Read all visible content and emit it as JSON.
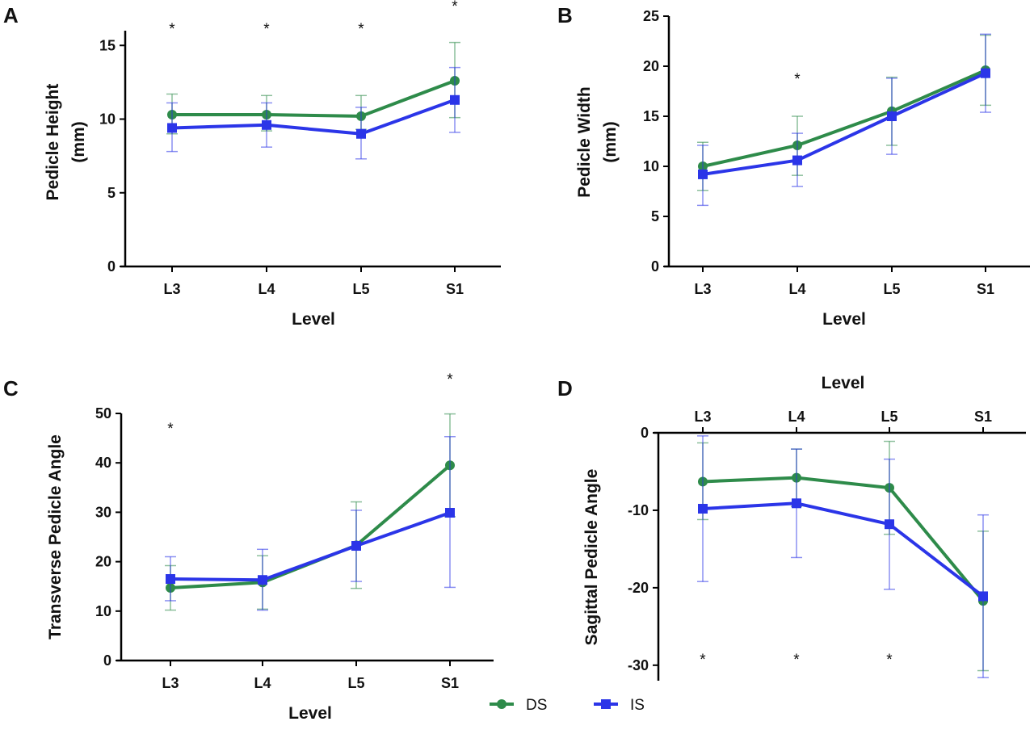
{
  "colors": {
    "DS": "#2e8b4a",
    "IS": "#2b35e8"
  },
  "legend": [
    {
      "name": "DS",
      "marker": "circle"
    },
    {
      "name": "IS",
      "marker": "square"
    }
  ],
  "chart_data": [
    {
      "panel": "A",
      "type": "line",
      "categories": [
        "L3",
        "L4",
        "L5",
        "S1"
      ],
      "xlabel": "Level",
      "ylabel_lines": [
        "Pedicle Height",
        "(mm)"
      ],
      "ylim": [
        0,
        16
      ],
      "yticks": [
        0,
        5,
        10,
        15
      ],
      "series": [
        {
          "name": "DS",
          "values": [
            10.3,
            10.3,
            10.2,
            12.6
          ],
          "err_low": [
            9.0,
            9.2,
            9.3,
            10.1
          ],
          "err_high": [
            11.7,
            11.6,
            11.6,
            15.2
          ]
        },
        {
          "name": "IS",
          "values": [
            9.4,
            9.6,
            9.0,
            11.3
          ],
          "err_low": [
            7.8,
            8.1,
            7.3,
            9.1
          ],
          "err_high": [
            11.1,
            11.1,
            10.8,
            13.5
          ]
        }
      ],
      "significance": [
        "*",
        "*",
        "*",
        "*"
      ]
    },
    {
      "panel": "B",
      "type": "line",
      "categories": [
        "L3",
        "L4",
        "L5",
        "S1"
      ],
      "xlabel": "Level",
      "ylabel_lines": [
        "Pedicle Width",
        "(mm)"
      ],
      "ylim": [
        0,
        25
      ],
      "yticks": [
        0,
        5,
        10,
        15,
        20,
        25
      ],
      "series": [
        {
          "name": "DS",
          "values": [
            10.0,
            12.1,
            15.5,
            19.6
          ],
          "err_low": [
            7.6,
            9.1,
            12.1,
            16.1
          ],
          "err_high": [
            12.4,
            15.0,
            18.9,
            23.1
          ]
        },
        {
          "name": "IS",
          "values": [
            9.2,
            10.6,
            15.0,
            19.3
          ],
          "err_low": [
            6.1,
            8.0,
            11.2,
            15.4
          ],
          "err_high": [
            12.1,
            13.3,
            18.8,
            23.2
          ]
        }
      ],
      "significance": [
        "",
        "*",
        "",
        ""
      ]
    },
    {
      "panel": "C",
      "type": "line",
      "categories": [
        "L3",
        "L4",
        "L5",
        "S1"
      ],
      "xlabel": "Level",
      "ylabel_lines": [
        "Transverse Pedicle Angle"
      ],
      "ylim": [
        0,
        50
      ],
      "yticks": [
        0,
        10,
        20,
        30,
        40,
        50
      ],
      "series": [
        {
          "name": "DS",
          "values": [
            14.7,
            15.8,
            23.3,
            39.5
          ],
          "err_low": [
            10.2,
            10.4,
            14.6,
            29.1
          ],
          "err_high": [
            19.2,
            21.2,
            32.1,
            49.9
          ]
        },
        {
          "name": "IS",
          "values": [
            16.5,
            16.3,
            23.2,
            29.9
          ],
          "err_low": [
            12.1,
            10.2,
            16.0,
            14.8
          ],
          "err_high": [
            21.0,
            22.5,
            30.4,
            45.3
          ]
        }
      ],
      "significance": [
        "*",
        "",
        "",
        "*"
      ]
    },
    {
      "panel": "D",
      "type": "line",
      "categories": [
        "L3",
        "L4",
        "L5",
        "S1"
      ],
      "xlabel": "Level",
      "xaxis_position": "top",
      "ylabel_lines": [
        "Sagittal Pedicle Angle"
      ],
      "ylim": [
        -32,
        0
      ],
      "yticks": [
        0,
        -10,
        -20,
        -30
      ],
      "series": [
        {
          "name": "DS",
          "values": [
            -6.3,
            -5.8,
            -7.1,
            -21.7
          ],
          "err_low": [
            -11.2,
            -9.5,
            -13.1,
            -30.7
          ],
          "err_high": [
            -1.3,
            -2.1,
            -1.1,
            -12.7
          ]
        },
        {
          "name": "IS",
          "values": [
            -9.8,
            -9.1,
            -11.8,
            -21.1
          ],
          "err_low": [
            -19.2,
            -16.1,
            -20.2,
            -31.6
          ],
          "err_high": [
            -0.4,
            -2.1,
            -3.4,
            -10.6
          ]
        }
      ],
      "significance": [
        "*",
        "*",
        "*",
        ""
      ]
    }
  ]
}
